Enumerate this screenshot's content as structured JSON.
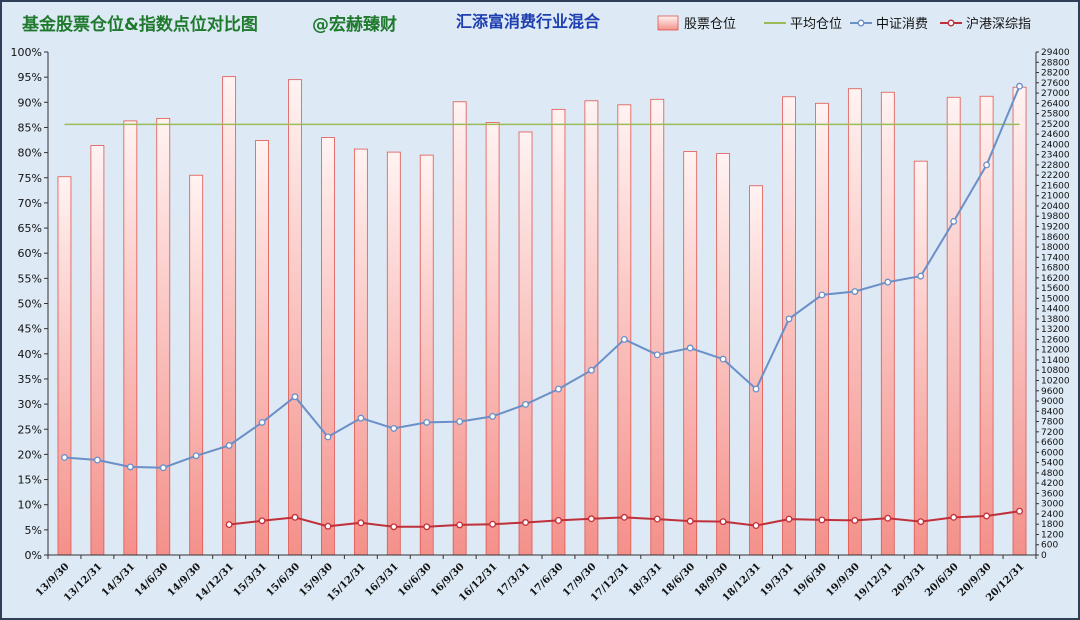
{
  "chart_data": {
    "type": "bar",
    "title": "基金股票仓位&指数点位对比图",
    "author": "@宏赫臻财",
    "subtitle": "汇添富消费行业混合",
    "categories": [
      "13/9/30",
      "13/12/31",
      "14/3/31",
      "14/6/30",
      "14/9/30",
      "14/12/31",
      "15/3/31",
      "15/6/30",
      "15/9/30",
      "15/12/31",
      "16/3/31",
      "16/6/30",
      "16/9/30",
      "16/12/31",
      "17/3/31",
      "17/6/30",
      "17/9/30",
      "17/12/31",
      "18/3/31",
      "18/6/30",
      "18/9/30",
      "18/12/31",
      "19/3/31",
      "19/6/30",
      "19/9/30",
      "19/12/31",
      "20/3/31",
      "20/6/30",
      "20/9/30",
      "20/12/31"
    ],
    "series": [
      {
        "name": "股票仓位",
        "type": "bar",
        "axis": "left",
        "color": "#f4908a",
        "values": [
          75.2,
          81.4,
          86.3,
          86.8,
          75.5,
          95.1,
          82.4,
          94.5,
          83.0,
          80.7,
          80.1,
          79.5,
          90.1,
          86.0,
          84.1,
          88.6,
          90.3,
          89.5,
          90.6,
          80.2,
          79.8,
          73.4,
          91.1,
          89.8,
          92.7,
          92.0,
          78.3,
          91.0,
          91.2,
          93.0
        ]
      },
      {
        "name": "平均仓位",
        "type": "line",
        "axis": "left",
        "color": "#9bbb59",
        "values": [
          85.6,
          85.6,
          85.6,
          85.6,
          85.6,
          85.6,
          85.6,
          85.6,
          85.6,
          85.6,
          85.6,
          85.6,
          85.6,
          85.6,
          85.6,
          85.6,
          85.6,
          85.6,
          85.6,
          85.6,
          85.6,
          85.6,
          85.6,
          85.6,
          85.6,
          85.6,
          85.6,
          85.6,
          85.6,
          85.6
        ]
      },
      {
        "name": "中证消费",
        "type": "line",
        "axis": "right",
        "color": "#6b8fc7",
        "values": [
          5700,
          5550,
          5150,
          5100,
          5800,
          6400,
          7750,
          9250,
          6900,
          8000,
          7400,
          7750,
          7800,
          8100,
          8800,
          9700,
          10800,
          12600,
          11700,
          12100,
          11450,
          9700,
          13800,
          15200,
          15400,
          15950,
          16300,
          19500,
          22800,
          27400
        ]
      },
      {
        "name": "沪港深综指",
        "type": "line",
        "axis": "right",
        "color": "#c0303a",
        "values": [
          null,
          null,
          null,
          null,
          null,
          1780,
          2000,
          2200,
          1680,
          1880,
          1650,
          1650,
          1760,
          1800,
          1900,
          2020,
          2120,
          2200,
          2100,
          1980,
          1950,
          1720,
          2100,
          2050,
          2020,
          2150,
          1950,
          2200,
          2280,
          2560
        ]
      }
    ],
    "yleft": {
      "min": 0,
      "max": 100,
      "step": 5,
      "unit": "%"
    },
    "yright": {
      "min": 0,
      "max": 29400,
      "step": 600
    },
    "legend_position": "top-right",
    "grid": false
  }
}
